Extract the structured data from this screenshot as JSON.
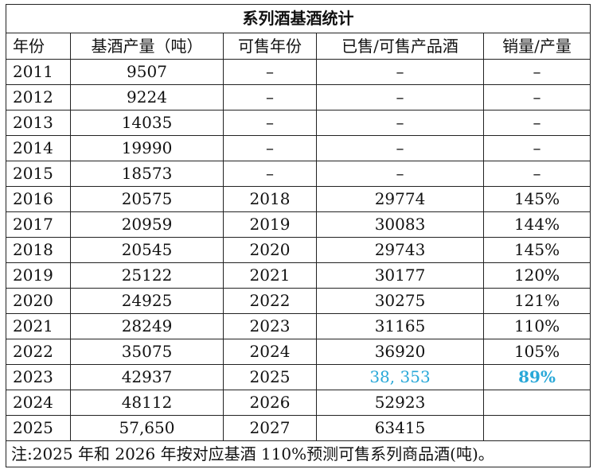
{
  "table": {
    "title": "系列酒基酒统计",
    "header": [
      "年份",
      "基酒产量（吨）",
      "可售年份",
      "已售/可售产品酒",
      "销量/产量"
    ],
    "rows": [
      [
        "2011",
        "9507",
        "–",
        "–",
        "–"
      ],
      [
        "2012",
        "9224",
        "–",
        "–",
        "–"
      ],
      [
        "2013",
        "14035",
        "–",
        "–",
        "–"
      ],
      [
        "2014",
        "19990",
        "–",
        "–",
        "–"
      ],
      [
        "2015",
        "18573",
        "–",
        "–",
        "–"
      ],
      [
        "2016",
        "20575",
        "2018",
        "29774",
        "145%"
      ],
      [
        "2017",
        "20959",
        "2019",
        "30083",
        "144%"
      ],
      [
        "2018",
        "20545",
        "2020",
        "29743",
        "145%"
      ],
      [
        "2019",
        "25122",
        "2021",
        "30177",
        "120%"
      ],
      [
        "2020",
        "24925",
        "2022",
        "30275",
        "121%"
      ],
      [
        "2021",
        "28249",
        "2023",
        "31165",
        "110%"
      ],
      [
        "2022",
        "35075",
        "2024",
        "36920",
        "105%"
      ],
      [
        "2023",
        "42937",
        "2025",
        "38, 353",
        "89%"
      ],
      [
        "2024",
        "48112",
        "2026",
        "52923",
        null
      ],
      [
        "2025",
        "57,650",
        "2027",
        "63415",
        null
      ]
    ],
    "note": "注:2025 年和 2026 年按对应基酒 110%预测可售系列商品酒(吨)。"
  }
}
